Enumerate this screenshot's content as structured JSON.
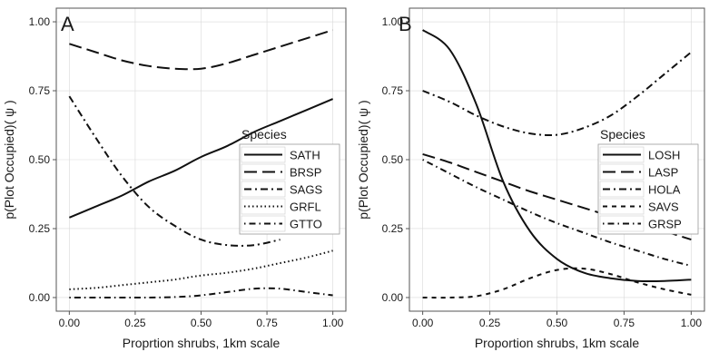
{
  "chart_data": [
    {
      "type": "line",
      "panel_label": "A",
      "xlabel": "Proprtion shrubs, 1km scale",
      "ylabel": "p(Plot Occupied)( ψ )",
      "xlim": [
        0,
        1
      ],
      "ylim": [
        0,
        1
      ],
      "x_ticks": [
        "0.00",
        "0.25",
        "0.50",
        "0.75",
        "1.00"
      ],
      "y_ticks": [
        "0.00",
        "0.25",
        "0.50",
        "0.75",
        "1.00"
      ],
      "grid": true,
      "legend": {
        "title": "Species",
        "placement": "center-right",
        "entries": [
          "SATH",
          "BRSP",
          "SAGS",
          "GRFL",
          "GTTO"
        ]
      },
      "x": [
        0,
        0.1,
        0.2,
        0.3,
        0.4,
        0.5,
        0.6,
        0.7,
        0.8,
        0.9,
        1.0
      ],
      "series": [
        {
          "name": "SATH",
          "line_style": "solid",
          "values": [
            0.29,
            0.33,
            0.37,
            0.42,
            0.46,
            0.51,
            0.55,
            0.6,
            0.64,
            0.68,
            0.72
          ]
        },
        {
          "name": "BRSP",
          "line_style": "longdash",
          "values": [
            0.92,
            0.89,
            0.86,
            0.84,
            0.83,
            0.83,
            0.85,
            0.88,
            0.91,
            0.94,
            0.97
          ]
        },
        {
          "name": "SAGS",
          "line_style": "twodash",
          "values": [
            0.73,
            0.58,
            0.44,
            0.33,
            0.26,
            0.21,
            0.19,
            0.19,
            0.21,
            null,
            null
          ]
        },
        {
          "name": "GRFL",
          "line_style": "dotted",
          "values": [
            0.03,
            0.035,
            0.045,
            0.055,
            0.065,
            0.08,
            0.09,
            0.105,
            0.125,
            0.145,
            0.17
          ]
        },
        {
          "name": "GTTO",
          "line_style": "dotdash",
          "values": [
            0.0,
            0.0,
            0.0,
            0.0,
            0.002,
            0.008,
            0.02,
            0.032,
            0.032,
            0.02,
            0.008
          ]
        }
      ]
    },
    {
      "type": "line",
      "panel_label": "B",
      "xlabel": "Proportion shrubs, 1km scale",
      "ylabel": "p(Plot Occupied)( ψ )",
      "xlim": [
        0,
        1
      ],
      "ylim": [
        0,
        1
      ],
      "x_ticks": [
        "0.00",
        "0.25",
        "0.50",
        "0.75",
        "1.00"
      ],
      "y_ticks": [
        "0.00",
        "0.25",
        "0.50",
        "0.75",
        "1.00"
      ],
      "grid": true,
      "legend": {
        "title": "Species",
        "placement": "center-right",
        "entries": [
          "LOSH",
          "LASP",
          "HOLA",
          "SAVS",
          "GRSP"
        ]
      },
      "x": [
        0,
        0.1,
        0.2,
        0.3,
        0.4,
        0.5,
        0.6,
        0.7,
        0.8,
        0.9,
        1.0
      ],
      "series": [
        {
          "name": "LOSH",
          "line_style": "solid",
          "values": [
            0.97,
            0.9,
            0.7,
            0.42,
            0.24,
            0.14,
            0.09,
            0.07,
            0.06,
            0.06,
            0.065
          ]
        },
        {
          "name": "LASP",
          "line_style": "longdash",
          "values": [
            0.52,
            0.49,
            0.455,
            0.42,
            0.385,
            0.355,
            0.325,
            0.295,
            0.265,
            0.24,
            0.21
          ]
        },
        {
          "name": "HOLA",
          "line_style": "twodash",
          "values": [
            0.75,
            0.71,
            0.66,
            0.62,
            0.595,
            0.59,
            0.615,
            0.66,
            0.73,
            0.81,
            0.89
          ]
        },
        {
          "name": "SAVS",
          "line_style": "dashed",
          "values": [
            0.0,
            0.0,
            0.005,
            0.03,
            0.07,
            0.1,
            0.105,
            0.085,
            0.055,
            0.03,
            0.01
          ]
        },
        {
          "name": "GRSP",
          "line_style": "dotdash",
          "values": [
            0.5,
            0.45,
            0.4,
            0.355,
            0.31,
            0.27,
            0.235,
            0.2,
            0.17,
            0.14,
            0.115
          ]
        }
      ]
    }
  ]
}
